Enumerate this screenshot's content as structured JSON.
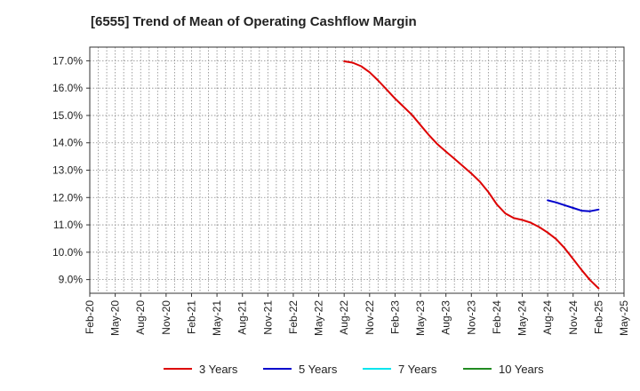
{
  "chart_data": {
    "type": "line",
    "title": "[6555]  Trend of Mean of Operating Cashflow Margin",
    "xlabel": "",
    "ylabel": "",
    "x_tick_labels": [
      "Feb-20",
      "May-20",
      "Aug-20",
      "Nov-20",
      "Feb-21",
      "May-21",
      "Aug-21",
      "Nov-21",
      "Feb-22",
      "May-22",
      "Aug-22",
      "Nov-22",
      "Feb-23",
      "May-23",
      "Aug-23",
      "Nov-23",
      "Feb-24",
      "May-24",
      "Aug-24",
      "Nov-24",
      "Feb-25",
      "May-25"
    ],
    "y_tick_values": [
      9.0,
      10.0,
      11.0,
      12.0,
      13.0,
      14.0,
      15.0,
      16.0,
      17.0
    ],
    "y_tick_labels": [
      "9.0%",
      "10.0%",
      "11.0%",
      "12.0%",
      "13.0%",
      "14.0%",
      "15.0%",
      "16.0%",
      "17.0%"
    ],
    "ylim": [
      8.5,
      17.5
    ],
    "x_range_months": [
      0,
      63
    ],
    "grid": true,
    "legend_position": "bottom",
    "series": [
      {
        "name": "3 Years",
        "color": "#dd0000",
        "points": [
          {
            "month": 30,
            "value": 16.98
          },
          {
            "month": 31,
            "value": 16.93
          },
          {
            "month": 32,
            "value": 16.8
          },
          {
            "month": 33,
            "value": 16.58
          },
          {
            "month": 34,
            "value": 16.28
          },
          {
            "month": 35,
            "value": 15.95
          },
          {
            "month": 36,
            "value": 15.62
          },
          {
            "month": 37,
            "value": 15.32
          },
          {
            "month": 38,
            "value": 15.02
          },
          {
            "month": 39,
            "value": 14.65
          },
          {
            "month": 40,
            "value": 14.28
          },
          {
            "month": 41,
            "value": 13.95
          },
          {
            "month": 42,
            "value": 13.68
          },
          {
            "month": 43,
            "value": 13.42
          },
          {
            "month": 44,
            "value": 13.15
          },
          {
            "month": 45,
            "value": 12.88
          },
          {
            "month": 46,
            "value": 12.58
          },
          {
            "month": 47,
            "value": 12.2
          },
          {
            "month": 48,
            "value": 11.75
          },
          {
            "month": 49,
            "value": 11.42
          },
          {
            "month": 50,
            "value": 11.25
          },
          {
            "month": 51,
            "value": 11.18
          },
          {
            "month": 52,
            "value": 11.08
          },
          {
            "month": 53,
            "value": 10.92
          },
          {
            "month": 54,
            "value": 10.72
          },
          {
            "month": 55,
            "value": 10.48
          },
          {
            "month": 56,
            "value": 10.15
          },
          {
            "month": 57,
            "value": 9.75
          },
          {
            "month": 58,
            "value": 9.35
          },
          {
            "month": 59,
            "value": 8.98
          },
          {
            "month": 60,
            "value": 8.68
          }
        ]
      },
      {
        "name": "5 Years",
        "color": "#0000cc",
        "points": [
          {
            "month": 54,
            "value": 11.9
          },
          {
            "month": 55,
            "value": 11.82
          },
          {
            "month": 56,
            "value": 11.72
          },
          {
            "month": 57,
            "value": 11.62
          },
          {
            "month": 58,
            "value": 11.52
          },
          {
            "month": 59,
            "value": 11.5
          },
          {
            "month": 60,
            "value": 11.56
          }
        ]
      },
      {
        "name": "7 Years",
        "color": "#00e5ee",
        "points": []
      },
      {
        "name": "10 Years",
        "color": "#228b22",
        "points": []
      }
    ]
  }
}
